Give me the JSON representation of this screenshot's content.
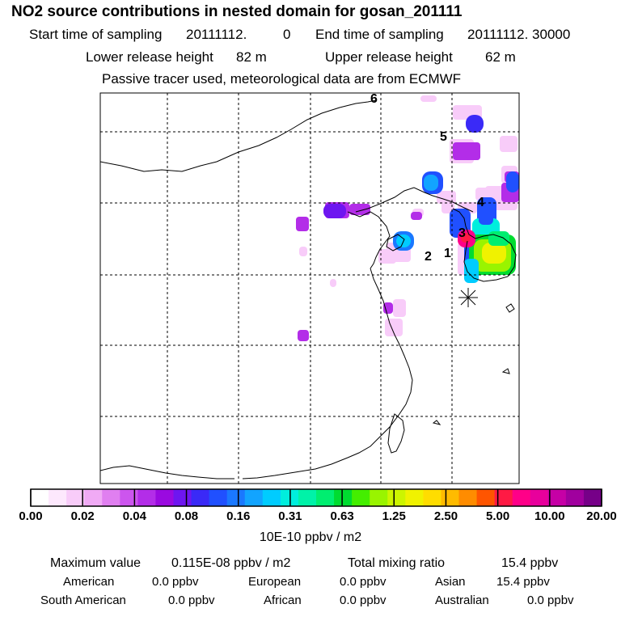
{
  "header": {
    "title": "NO2 source contributions in nested domain for gosan_201111",
    "start_label": "Start time of sampling",
    "start_value": "20111112.",
    "start_hms": "0",
    "end_label": "End time of sampling",
    "end_value": "20111112. 30000",
    "lower_label": "Lower release height",
    "lower_value": "82 m",
    "upper_label": "Upper release height",
    "upper_value": "62 m",
    "note": "Passive tracer used, meteorological data are from ECMWF"
  },
  "map": {
    "markers": [
      {
        "label": "1"
      },
      {
        "label": "2"
      },
      {
        "label": "3"
      },
      {
        "label": "4"
      },
      {
        "label": "5"
      },
      {
        "label": "6"
      }
    ],
    "receptor": "gosan"
  },
  "colorbar": {
    "ticks": [
      "0.00",
      "0.02",
      "0.04",
      "0.08",
      "0.16",
      "0.31",
      "0.63",
      "1.25",
      "2.50",
      "5.00",
      "10.00",
      "20.00"
    ],
    "colors": [
      "#ffffff",
      "#fde8fd",
      "#f8ccf9",
      "#f0aaf5",
      "#e07ff0",
      "#cc55ee",
      "#b32de8",
      "#9a0ae0",
      "#6e16f0",
      "#3a2af7",
      "#2050ff",
      "#1a78ff",
      "#12a4ff",
      "#00ccff",
      "#00eedd",
      "#00f2a8",
      "#00ee70",
      "#00dc30",
      "#44ee00",
      "#99f400",
      "#ccf500",
      "#f0f200",
      "#ffdd00",
      "#ffbb00",
      "#ff8c00",
      "#ff5500",
      "#ff1a44",
      "#ff0088",
      "#e8009c",
      "#c600a6",
      "#a0009e",
      "#760088"
    ],
    "unit_label": "10E-10 ppbv / m2"
  },
  "summary": {
    "max_label": "Maximum value",
    "max_value": "0.115E-08 ppbv / m2",
    "total_label": "Total mixing ratio",
    "total_value": "15.4 ppbv",
    "regions": [
      {
        "name": "American",
        "value": "0.0 ppbv"
      },
      {
        "name": "European",
        "value": "0.0 ppbv"
      },
      {
        "name": "Asian",
        "value": "15.4 ppbv"
      },
      {
        "name": "South American",
        "value": "0.0 ppbv"
      },
      {
        "name": "African",
        "value": "0.0 ppbv"
      },
      {
        "name": "Australian",
        "value": "0.0 ppbv"
      }
    ]
  }
}
